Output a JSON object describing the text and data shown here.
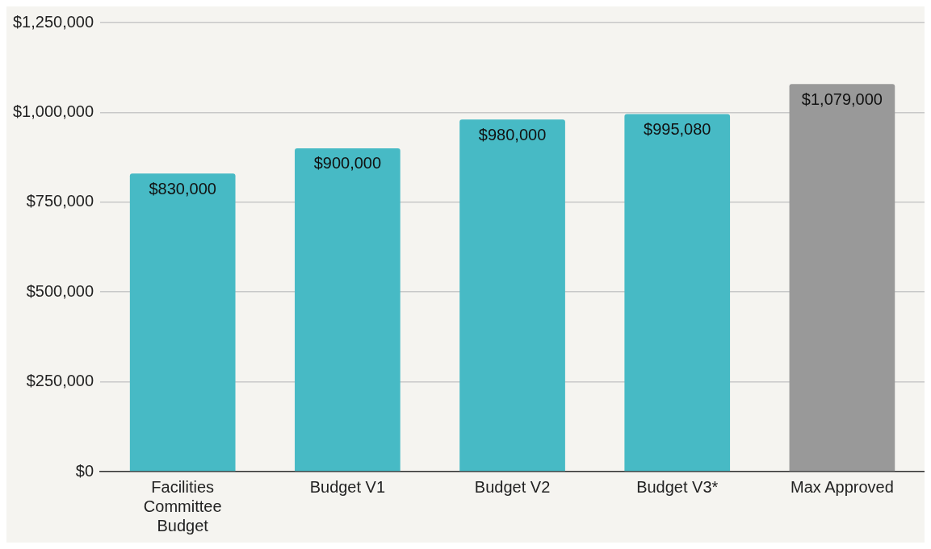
{
  "chart_data": {
    "type": "bar",
    "categories": [
      "Facilities Committee Budget",
      "Budget V1",
      "Budget V2",
      "Budget V3*",
      "Max Approved"
    ],
    "values": [
      830000,
      900000,
      980000,
      995080,
      1079000
    ],
    "colors": [
      "#47bac5",
      "#47bac5",
      "#47bac5",
      "#47bac5",
      "#999999"
    ],
    "value_labels": [
      "$830,000",
      "$900,000",
      "$980,000",
      "$995,080",
      "$1,079,000"
    ],
    "ylim": [
      0,
      1250000
    ],
    "yticks": [
      {
        "value": 0,
        "label": "$0"
      },
      {
        "value": 250000,
        "label": "$250,000"
      },
      {
        "value": 500000,
        "label": "$500,000"
      },
      {
        "value": 750000,
        "label": "$750,000"
      },
      {
        "value": 1000000,
        "label": "$1,000,000"
      },
      {
        "value": 1250000,
        "label": "$1,250,000"
      }
    ],
    "grid": "y",
    "legend": false
  }
}
